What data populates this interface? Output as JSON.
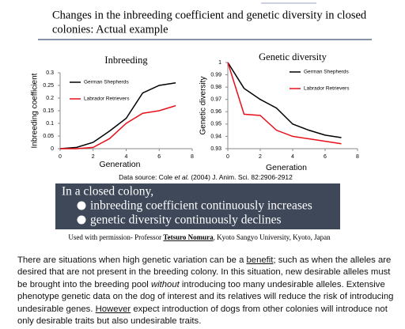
{
  "header": {
    "title_lines": [
      "Changes in the inbreeding coefficient and genetic diversity in closed",
      "colonies:  Actual example"
    ]
  },
  "chart_data": [
    {
      "type": "line",
      "title": "Inbreeding",
      "x_label": "Generation",
      "y_label": "Inbreeding coefficient",
      "x": [
        0,
        1,
        2,
        3,
        4,
        5,
        6,
        7
      ],
      "xlim": [
        0,
        8
      ],
      "xticks": [
        0,
        2,
        4,
        6,
        8
      ],
      "ylim": [
        0,
        0.3
      ],
      "yticks": [
        0,
        0.05,
        0.1,
        0.15,
        0.2,
        0.25,
        0.3
      ],
      "grid": false,
      "legend": "upper left",
      "series": [
        {
          "name": "German Shepherds",
          "color": "#000000",
          "values": [
            0,
            0.005,
            0.025,
            0.07,
            0.12,
            0.22,
            0.25,
            0.26
          ]
        },
        {
          "name": "Labrador Retrievers",
          "color": "#e8101a",
          "values": [
            0,
            0,
            0.005,
            0.04,
            0.1,
            0.14,
            0.15,
            0.17
          ]
        }
      ]
    },
    {
      "type": "line",
      "title": "Genetic diversity",
      "x_label": "Generation",
      "y_label": "Genetic diversity",
      "x": [
        0,
        1,
        2,
        3,
        4,
        5,
        6,
        7
      ],
      "xlim": [
        0,
        8
      ],
      "xticks": [
        0,
        2,
        4,
        6,
        8
      ],
      "ylim": [
        0.93,
        1
      ],
      "yticks": [
        0.93,
        0.94,
        0.95,
        0.96,
        0.97,
        0.98,
        0.99,
        1
      ],
      "grid": false,
      "legend": "upper right",
      "series": [
        {
          "name": "German Shepherds",
          "color": "#000000",
          "values": [
            1,
            0.979,
            0.97,
            0.963,
            0.95,
            0.945,
            0.941,
            0.939
          ]
        },
        {
          "name": "Labrador Retrievers",
          "color": "#e8101a",
          "values": [
            1,
            0.958,
            0.957,
            0.945,
            0.94,
            0.938,
            0.936,
            0.934
          ]
        }
      ]
    }
  ],
  "source": [
    "Data source: Cole ",
    "et al.",
    " (2004) J. Anim. Sci. 82:2906-2912"
  ],
  "summary_box": {
    "heading": "In a closed colony,",
    "bullets": [
      "inbreeding coefficient continuously increases",
      "genetic diversity continuously declines"
    ]
  },
  "permission": [
    "Used with permission- Professor ",
    "Tetsuro Nomura",
    ", Kyoto Sangyo University, Kyoto, Japan"
  ],
  "paragraph": [
    "There are situations when high genetic variation can be a ",
    "benefit",
    "; such as when the alleles are desired that are not present in the breeding colony.  In this situation, new desirable alleles must be brought into the breeding pool ",
    "without",
    " introducing too many undesirable alleles. Extensive phenotype genetic data on the dog of interest and its relatives will reduce the risk of introducing undesirable genes.  ",
    "However",
    " expect introduction of dogs from other colonies will introduce not only desirable traits but also undesirable traits."
  ]
}
